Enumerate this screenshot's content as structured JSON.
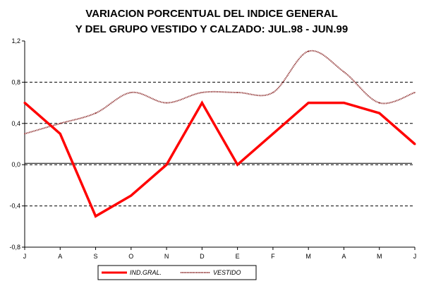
{
  "chart_data": {
    "type": "line",
    "title_lines": [
      "VARIACION PORCENTUAL DEL INDICE GENERAL",
      "Y DEL GRUPO VESTIDO Y CALZADO: JUL.98 - JUN.99"
    ],
    "categories": [
      "J",
      "A",
      "S",
      "O",
      "N",
      "D",
      "E",
      "F",
      "M",
      "A",
      "M",
      "J"
    ],
    "ylim": [
      -0.8,
      1.2
    ],
    "yticks": [
      -0.8,
      -0.4,
      0.0,
      0.4,
      0.8,
      1.2
    ],
    "ytick_labels": [
      "-0,8",
      "-0,4",
      "0,0",
      "0,4",
      "0,8",
      "1,2"
    ],
    "dashed_gridlines_at": [
      -0.4,
      0.0,
      0.4,
      0.8
    ],
    "xlabel": "",
    "ylabel": "",
    "series": [
      {
        "name": "IND.GRAL.",
        "color": "#ff0000",
        "style": "solid-thick",
        "values": [
          0.6,
          0.3,
          -0.5,
          -0.3,
          0.0,
          0.6,
          0.0,
          0.3,
          0.6,
          0.6,
          0.5,
          0.2
        ]
      },
      {
        "name": "VESTIDO",
        "color": "#8b2a2a",
        "style": "dotted-smooth",
        "values": [
          0.3,
          0.4,
          0.5,
          0.7,
          0.6,
          0.7,
          0.7,
          0.7,
          1.1,
          0.9,
          0.6,
          0.7
        ]
      }
    ],
    "legend_position": "bottom"
  }
}
